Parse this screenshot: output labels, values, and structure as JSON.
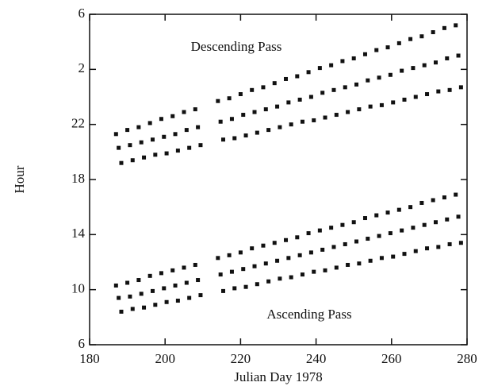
{
  "chart_data": {
    "type": "scatter",
    "xlabel": "Julian Day 1978",
    "ylabel": "Hour",
    "annotations": [
      "Descending Pass",
      "Ascending Pass"
    ],
    "xlim": [
      180,
      280
    ],
    "xticks": [
      180,
      200,
      220,
      240,
      260,
      280
    ],
    "ylim": [
      6,
      30
    ],
    "yticks": [
      6,
      10,
      14,
      18,
      22,
      {
        "value": 26,
        "label": "2"
      },
      {
        "value": 30,
        "label": "6"
      }
    ],
    "color": "#111111",
    "series": [
      {
        "x": [
          187,
          187.7,
          188.4,
          190,
          190.7,
          191.4,
          193,
          193.7,
          194.4,
          196,
          196.7,
          197.4,
          199,
          199.7,
          200.4,
          202,
          202.7,
          203.4,
          205,
          205.7,
          206.4,
          208,
          208.7,
          209.4,
          214,
          214.7,
          215.4,
          217,
          217.7,
          218.4,
          220,
          220.7,
          221.4,
          223,
          223.7,
          224.4,
          226,
          226.7,
          227.4,
          229,
          229.7,
          230.4,
          232,
          232.7,
          233.4,
          235,
          235.7,
          236.4,
          238,
          238.7,
          239.4,
          241,
          241.7,
          242.4,
          244,
          244.7,
          245.4,
          247,
          247.7,
          248.4,
          250,
          250.7,
          251.4,
          253,
          253.7,
          254.4,
          256,
          256.7,
          257.4,
          259,
          259.7,
          260.4,
          262,
          262.7,
          263.4,
          265,
          265.7,
          266.4,
          268,
          268.7,
          269.4,
          271,
          271.7,
          272.4,
          274,
          274.7,
          275.4,
          277,
          277.7,
          278.4
        ],
        "y": [
          21.3,
          20.3,
          19.2,
          21.6,
          20.5,
          19.4,
          21.8,
          20.7,
          19.6,
          22.1,
          20.9,
          19.8,
          22.4,
          21.1,
          19.9,
          22.6,
          21.3,
          20.1,
          22.9,
          21.6,
          20.3,
          23.1,
          21.8,
          20.5,
          23.7,
          22.2,
          20.9,
          23.9,
          22.4,
          21.0,
          24.2,
          22.7,
          21.2,
          24.5,
          22.9,
          21.4,
          24.7,
          23.1,
          21.6,
          25.0,
          23.3,
          21.8,
          25.3,
          23.6,
          22.0,
          25.5,
          23.8,
          22.2,
          25.8,
          24.0,
          22.3,
          26.1,
          24.3,
          22.5,
          26.3,
          24.5,
          22.7,
          26.6,
          24.7,
          22.9,
          26.8,
          24.9,
          23.1,
          27.1,
          25.2,
          23.3,
          27.4,
          25.4,
          23.4,
          27.6,
          25.6,
          23.6,
          27.9,
          25.9,
          23.8,
          28.2,
          26.1,
          24.0,
          28.4,
          26.3,
          24.2,
          28.7,
          26.5,
          24.4,
          29.0,
          26.8,
          24.5,
          29.2,
          27.0,
          24.7
        ]
      },
      {
        "x": [
          187,
          187.7,
          188.4,
          190,
          190.7,
          191.4,
          193,
          193.7,
          194.4,
          196,
          196.7,
          197.4,
          199,
          199.7,
          200.4,
          202,
          202.7,
          203.4,
          205,
          205.7,
          206.4,
          208,
          208.7,
          209.4,
          214,
          214.7,
          215.4,
          217,
          217.7,
          218.4,
          220,
          220.7,
          221.4,
          223,
          223.7,
          224.4,
          226,
          226.7,
          227.4,
          229,
          229.7,
          230.4,
          232,
          232.7,
          233.4,
          235,
          235.7,
          236.4,
          238,
          238.7,
          239.4,
          241,
          241.7,
          242.4,
          244,
          244.7,
          245.4,
          247,
          247.7,
          248.4,
          250,
          250.7,
          251.4,
          253,
          253.7,
          254.4,
          256,
          256.7,
          257.4,
          259,
          259.7,
          260.4,
          262,
          262.7,
          263.4,
          265,
          265.7,
          266.4,
          268,
          268.7,
          269.4,
          271,
          271.7,
          272.4,
          274,
          274.7,
          275.4,
          277,
          277.7,
          278.4
        ],
        "y": [
          10.3,
          9.4,
          8.4,
          10.5,
          9.5,
          8.6,
          10.7,
          9.7,
          8.7,
          11.0,
          9.9,
          8.9,
          11.2,
          10.1,
          9.1,
          11.4,
          10.3,
          9.2,
          11.6,
          10.5,
          9.4,
          11.8,
          10.7,
          9.6,
          12.3,
          11.1,
          9.9,
          12.5,
          11.3,
          10.1,
          12.7,
          11.5,
          10.2,
          13.0,
          11.7,
          10.4,
          13.2,
          11.9,
          10.6,
          13.4,
          12.1,
          10.8,
          13.6,
          12.3,
          10.9,
          13.8,
          12.5,
          11.1,
          14.1,
          12.7,
          11.3,
          14.3,
          12.9,
          11.4,
          14.5,
          13.1,
          11.6,
          14.7,
          13.3,
          11.8,
          14.9,
          13.5,
          11.9,
          15.2,
          13.7,
          12.1,
          15.4,
          13.9,
          12.3,
          15.6,
          14.1,
          12.4,
          15.8,
          14.3,
          12.6,
          16.0,
          14.5,
          12.8,
          16.3,
          14.7,
          13.0,
          16.5,
          14.9,
          13.1,
          16.7,
          15.1,
          13.3,
          16.9,
          15.3,
          13.4
        ]
      }
    ]
  }
}
